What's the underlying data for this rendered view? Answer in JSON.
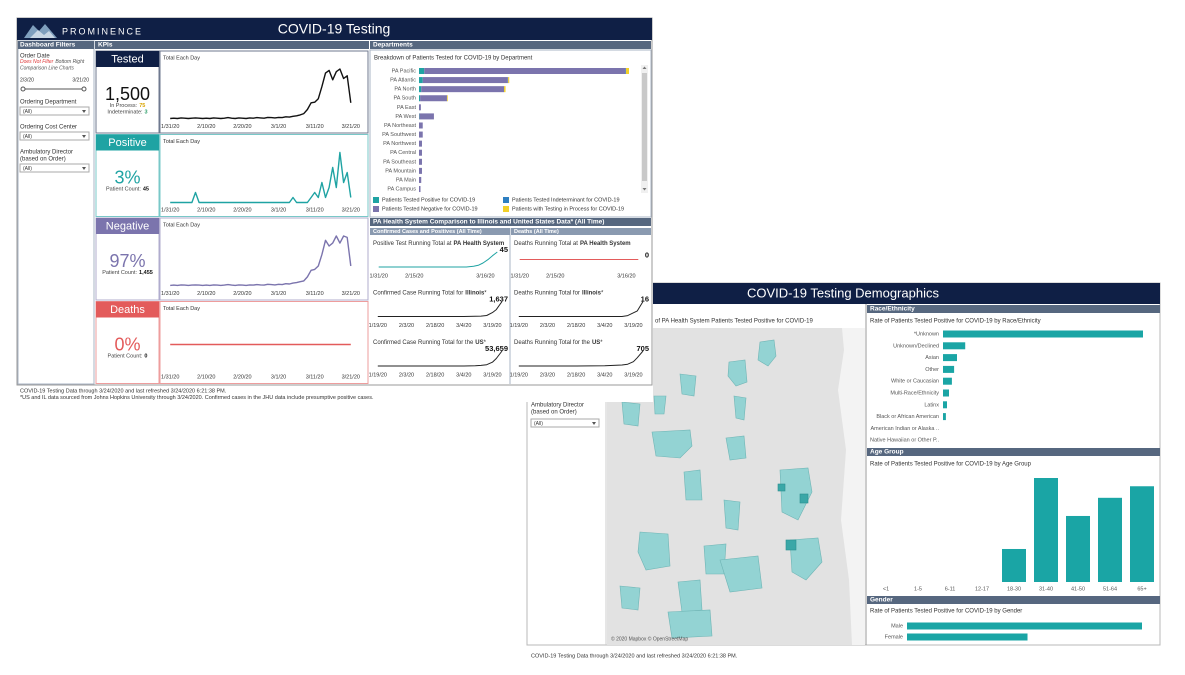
{
  "left": {
    "logo": "PROMINENCE",
    "title": "COVID-19 Testing",
    "filters": {
      "header": "Dashboard Filters",
      "order_date": "Order Date",
      "note_red": "Does Not Filter",
      "note_rest": "Bottom Right",
      "note_line2": "Comparison Line Charts",
      "date_start": "2/3/20",
      "date_end": "3/21/20",
      "fields": [
        {
          "label": "Ordering Department",
          "value": "(All)"
        },
        {
          "label": "Ordering Cost Center",
          "value": "(All)"
        },
        {
          "label": "Ambulatory Director",
          "label2": "(based on Order)",
          "value": "(All)"
        }
      ]
    },
    "kpis": {
      "header": "KPIs",
      "chart_title": "Total Each Day",
      "x": [
        "1/31/20",
        "2/1/20",
        "2/2/20",
        "2/3/20",
        "2/4/20",
        "2/5/20",
        "2/6/20",
        "2/7/20",
        "2/8/20",
        "2/9/20",
        "2/10/20",
        "2/11/20",
        "2/12/20",
        "2/13/20",
        "2/14/20",
        "2/15/20",
        "2/16/20",
        "2/17/20",
        "2/18/20",
        "2/19/20",
        "2/20/20",
        "2/21/20",
        "2/22/20",
        "2/23/20",
        "2/24/20",
        "2/25/20",
        "2/26/20",
        "2/27/20",
        "2/28/20",
        "2/29/20",
        "3/1/20",
        "3/2/20",
        "3/3/20",
        "3/4/20",
        "3/5/20",
        "3/6/20",
        "3/7/20",
        "3/8/20",
        "3/9/20",
        "3/10/20",
        "3/11/20",
        "3/12/20",
        "3/13/20",
        "3/14/20",
        "3/15/20",
        "3/16/20",
        "3/17/20",
        "3/18/20",
        "3/19/20",
        "3/20/20",
        "3/21/20"
      ],
      "xlim": [
        "1/29/20",
        "3/23/20"
      ],
      "xticks": [
        "1/31/20",
        "2/10/20",
        "2/20/20",
        "3/1/20",
        "3/11/20",
        "3/21/20"
      ],
      "cards": [
        {
          "label": "Tested",
          "value": "1,500",
          "color": "#0f1f45",
          "value_color": "#111",
          "line_color": "#111",
          "lines": [
            {
              "label": "In Process:",
              "value": "75",
              "color": "#d9a400"
            },
            {
              "label": "Indeterminate:",
              "value": "3",
              "color": "#2e9e6a"
            }
          ],
          "values": [
            2,
            3,
            2,
            4,
            3,
            2,
            3,
            4,
            3,
            2,
            3,
            2,
            4,
            3,
            2,
            3,
            5,
            3,
            2,
            4,
            3,
            2,
            4,
            3,
            5,
            4,
            3,
            6,
            5,
            4,
            6,
            5,
            8,
            7,
            10,
            12,
            15,
            20,
            35,
            60,
            62,
            75,
            120,
            170,
            180,
            145,
            175,
            185,
            150,
            160,
            60
          ]
        },
        {
          "label": "Positive",
          "value": "3%",
          "color": "#1fa3a3",
          "value_color": "#1fa3a3",
          "line_color": "#1fa3a3",
          "lines": [
            {
              "label": "Patient Count:",
              "value": "45",
              "color": "#111"
            }
          ],
          "values": [
            0,
            0,
            0,
            0,
            0,
            0,
            0,
            2,
            0,
            0,
            0,
            0,
            0,
            0,
            0,
            0,
            0,
            0,
            0,
            0,
            0,
            0,
            0,
            0,
            0,
            0,
            0,
            0,
            0,
            0,
            0,
            0,
            0,
            0,
            1,
            0,
            0,
            0,
            0,
            1,
            2,
            1,
            4,
            1,
            3,
            7,
            3,
            10,
            4,
            6,
            1
          ]
        },
        {
          "label": "Negative",
          "value": "97%",
          "color": "#7b74ad",
          "value_color": "#7b74ad",
          "line_color": "#7b74ad",
          "lines": [
            {
              "label": "Patient Count:",
              "value": "1,455",
              "color": "#111"
            }
          ],
          "values": [
            2,
            3,
            2,
            4,
            3,
            2,
            3,
            4,
            3,
            2,
            3,
            2,
            4,
            3,
            2,
            3,
            5,
            3,
            2,
            4,
            3,
            2,
            4,
            3,
            5,
            4,
            3,
            6,
            5,
            4,
            6,
            5,
            8,
            7,
            10,
            12,
            15,
            18,
            32,
            55,
            58,
            70,
            110,
            160,
            140,
            150,
            175,
            150,
            175,
            170,
            70
          ]
        },
        {
          "label": "Deaths",
          "value": "0%",
          "color": "#e35b5b",
          "value_color": "#e35b5b",
          "line_color": "#e35b5b",
          "lines": [
            {
              "label": "Patient Count:",
              "value": "0",
              "color": "#111"
            }
          ],
          "values": [
            0,
            0,
            0,
            0,
            0,
            0,
            0,
            0,
            0,
            0,
            0,
            0,
            0,
            0,
            0,
            0,
            0,
            0,
            0,
            0,
            0,
            0,
            0,
            0,
            0,
            0,
            0,
            0,
            0,
            0,
            0,
            0,
            0,
            0,
            0,
            0,
            0,
            0,
            0,
            0,
            0,
            0,
            0,
            0,
            0,
            0,
            0,
            0,
            0,
            0,
            0
          ]
        }
      ]
    },
    "departments": {
      "header": "Departments",
      "title": "Breakdown of Patients Tested for COVID-19 by Department",
      "categories": [
        "PA Pacific",
        "PA Atlantic",
        "PA North",
        "PA South",
        "PA East",
        "PA West",
        "PA Northeast",
        "PA Southwest",
        "PA Northwest",
        "PA Central",
        "PA Southeast",
        "PA Mountain",
        "PA Main",
        "PA Campus"
      ],
      "series": [
        {
          "name": "Patients Tested Positive for COVID-19",
          "color": "#1fa3a3",
          "values": [
            14,
            10,
            6,
            3,
            0,
            1,
            0,
            0,
            0,
            0,
            0,
            0,
            0,
            0
          ]
        },
        {
          "name": "Patients Tested Negative for COVID-19",
          "color": "#7b74ad",
          "values": [
            540,
            228,
            222,
            72,
            5,
            39,
            10,
            10,
            8,
            8,
            8,
            8,
            6,
            4
          ]
        },
        {
          "name": "Patients Tested Indeterminant for COVID-19",
          "color": "#2e7fc1",
          "values": [
            1,
            1,
            0,
            0,
            0,
            0,
            0,
            0,
            0,
            0,
            0,
            0,
            0,
            0
          ]
        },
        {
          "name": "Patients with Testing in Process for COVID-19",
          "color": "#f2d028",
          "values": [
            8,
            3,
            4,
            2,
            0,
            0,
            0,
            0,
            0,
            0,
            0,
            0,
            0,
            0
          ]
        }
      ]
    },
    "comparison": {
      "header": "PA Health System Comparison to Illinois and United States Data* (All Time)",
      "columns": [
        {
          "header": "Confirmed Cases and Positives (All Time)",
          "charts": [
            {
              "title": "Positive Test Running Total at",
              "title_bold": "PA Health System",
              "color": "#1fa3a3",
              "x": [
                "1/31/20",
                "2/15/20",
                "3/1/20",
                "3/8/20",
                "3/11/20",
                "3/13/20",
                "3/15/20",
                "3/17/20",
                "3/19/20",
                "3/21/20"
              ],
              "values": [
                0,
                0,
                0,
                0,
                2,
                5,
                12,
                22,
                34,
                45
              ],
              "xlim": [
                "1/29/20",
                "3/23/20"
              ],
              "xticks": [
                "1/31/20",
                "2/15/20",
                "3/16/20"
              ]
            },
            {
              "title": "Confirmed Case Running Total for",
              "title_bold": "Illinois",
              "title_end": "*",
              "color": "#222",
              "x": [
                "1/19/20",
                "2/3/20",
                "2/18/20",
                "3/4/20",
                "3/10/20",
                "3/13/20",
                "3/16/20",
                "3/19/20",
                "3/21/20",
                "3/24/20"
              ],
              "values": [
                0,
                0,
                0,
                0,
                19,
                46,
                105,
                422,
                753,
                1637
              ],
              "value_labels": [
                null,
                null,
                null,
                null,
                null,
                null,
                null,
                null,
                null,
                "1,637"
              ],
              "xlim": [
                "1/17/20",
                "3/24/20"
              ],
              "xticks": [
                "1/19/20",
                "2/3/20",
                "2/18/20",
                "3/4/20",
                "3/19/20"
              ]
            },
            {
              "title": "Confirmed Case Running Total for the",
              "title_bold": "US",
              "title_end": "*",
              "color": "#222",
              "x": [
                "1/19/20",
                "2/3/20",
                "2/18/20",
                "3/4/20",
                "3/10/20",
                "3/13/20",
                "3/16/20",
                "3/19/20",
                "3/21/20",
                "3/24/20"
              ],
              "values": [
                0,
                8,
                15,
                150,
                960,
                2200,
                4600,
                13700,
                26700,
                53659
              ],
              "value_labels": [
                null,
                null,
                null,
                null,
                null,
                null,
                null,
                null,
                null,
                "53,659"
              ],
              "xlim": [
                "1/17/20",
                "3/24/20"
              ],
              "xticks": [
                "1/19/20",
                "2/3/20",
                "2/18/20",
                "3/4/20",
                "3/19/20"
              ]
            }
          ]
        },
        {
          "header": "Deaths (All Time)",
          "charts": [
            {
              "title": "Deaths Running Total at",
              "title_bold": "PA Health System",
              "color": "#e35b5b",
              "x": [
                "1/31/20",
                "2/15/20",
                "3/1/20",
                "3/8/20",
                "3/11/20",
                "3/13/20",
                "3/15/20",
                "3/17/20",
                "3/19/20",
                "3/21/20"
              ],
              "values": [
                0,
                0,
                0,
                0,
                0,
                0,
                0,
                0,
                0,
                0
              ],
              "xlim": [
                "1/29/20",
                "3/23/20"
              ],
              "xticks": [
                "1/31/20",
                "2/15/20",
                "3/16/20"
              ]
            },
            {
              "title": "Deaths Running Total for",
              "title_bold": "Illinois",
              "title_end": "*",
              "color": "#222",
              "x": [
                "1/19/20",
                "2/3/20",
                "2/18/20",
                "3/4/20",
                "3/10/20",
                "3/13/20",
                "3/16/20",
                "3/19/20",
                "3/21/20",
                "3/24/20"
              ],
              "values": [
                0,
                0,
                0,
                0,
                0,
                0,
                1,
                4,
                6,
                16
              ],
              "xlim": [
                "1/17/20",
                "3/24/20"
              ],
              "xticks": [
                "1/19/20",
                "2/3/20",
                "2/18/20",
                "3/4/20",
                "3/19/20"
              ]
            },
            {
              "title": "Deaths Running Total for the",
              "title_bold": "US",
              "title_end": "*",
              "color": "#222",
              "x": [
                "1/19/20",
                "2/3/20",
                "2/18/20",
                "3/4/20",
                "3/10/20",
                "3/13/20",
                "3/16/20",
                "3/19/20",
                "3/21/20",
                "3/24/20"
              ],
              "values": [
                0,
                0,
                0,
                9,
                31,
                49,
                86,
                200,
                390,
                705
              ],
              "xlim": [
                "1/17/20",
                "3/24/20"
              ],
              "xticks": [
                "1/19/20",
                "2/3/20",
                "2/18/20",
                "3/4/20",
                "3/19/20"
              ]
            }
          ]
        }
      ]
    },
    "footer": [
      "COVID-19 Testing Data through 3/24/2020 and last refreshed 3/24/2020 6:21:38 PM.",
      "*US and IL data sourced from Johns Hopkins University through 3/24/2020. Confirmed cases in the JHU data include presumptive positive cases."
    ]
  },
  "right": {
    "title": "COVID-19 Testing Demographics",
    "filter": {
      "label": "Ambulatory Director",
      "label2": "(based on Order)",
      "value": "(All)"
    },
    "map": {
      "title": "of PA Health System Patients Tested Positive for COVID-19",
      "credit": "© 2020 Mapbox © OpenStreetMap"
    },
    "race": {
      "header": "Race/Ethnicity",
      "title": "Rate of Patients Tested Positive for COVID-19 by Race/Ethnicity",
      "color": "#1aa5a5",
      "categories": [
        "*Unknown",
        "Unknown/Declined",
        "Asian",
        "Other",
        "White or Caucasian",
        "Multi-Race/Ethnicity",
        "Latinx",
        "Black or African American",
        "American Indian or Alaska ..",
        "Native Hawaiian or Other P.."
      ],
      "values": [
        9.0,
        1.0,
        0.63,
        0.5,
        0.4,
        0.27,
        0.18,
        0.13,
        0,
        0
      ]
    },
    "age": {
      "header": "Age Group",
      "title": "Rate of Patients Tested Positive for COVID-19 by Age Group",
      "color": "#1aa5a5",
      "categories": [
        "<1",
        "1-5",
        "6-11",
        "12-17",
        "18-30",
        "31-40",
        "41-50",
        "51-64",
        "65+"
      ],
      "values": [
        0,
        0,
        0,
        0,
        1.0,
        3.15,
        2.0,
        2.55,
        2.9
      ]
    },
    "gender": {
      "header": "Gender",
      "title": "Rate of Patients Tested Positive for COVID-19 by Gender",
      "color": "#1aa5a5",
      "categories": [
        "Male",
        "Female"
      ],
      "values": [
        3.9,
        2.0
      ]
    },
    "footer": "COVID-19 Testing Data through 3/24/2020 and last refreshed 3/24/2020 6:21:38 PM."
  }
}
